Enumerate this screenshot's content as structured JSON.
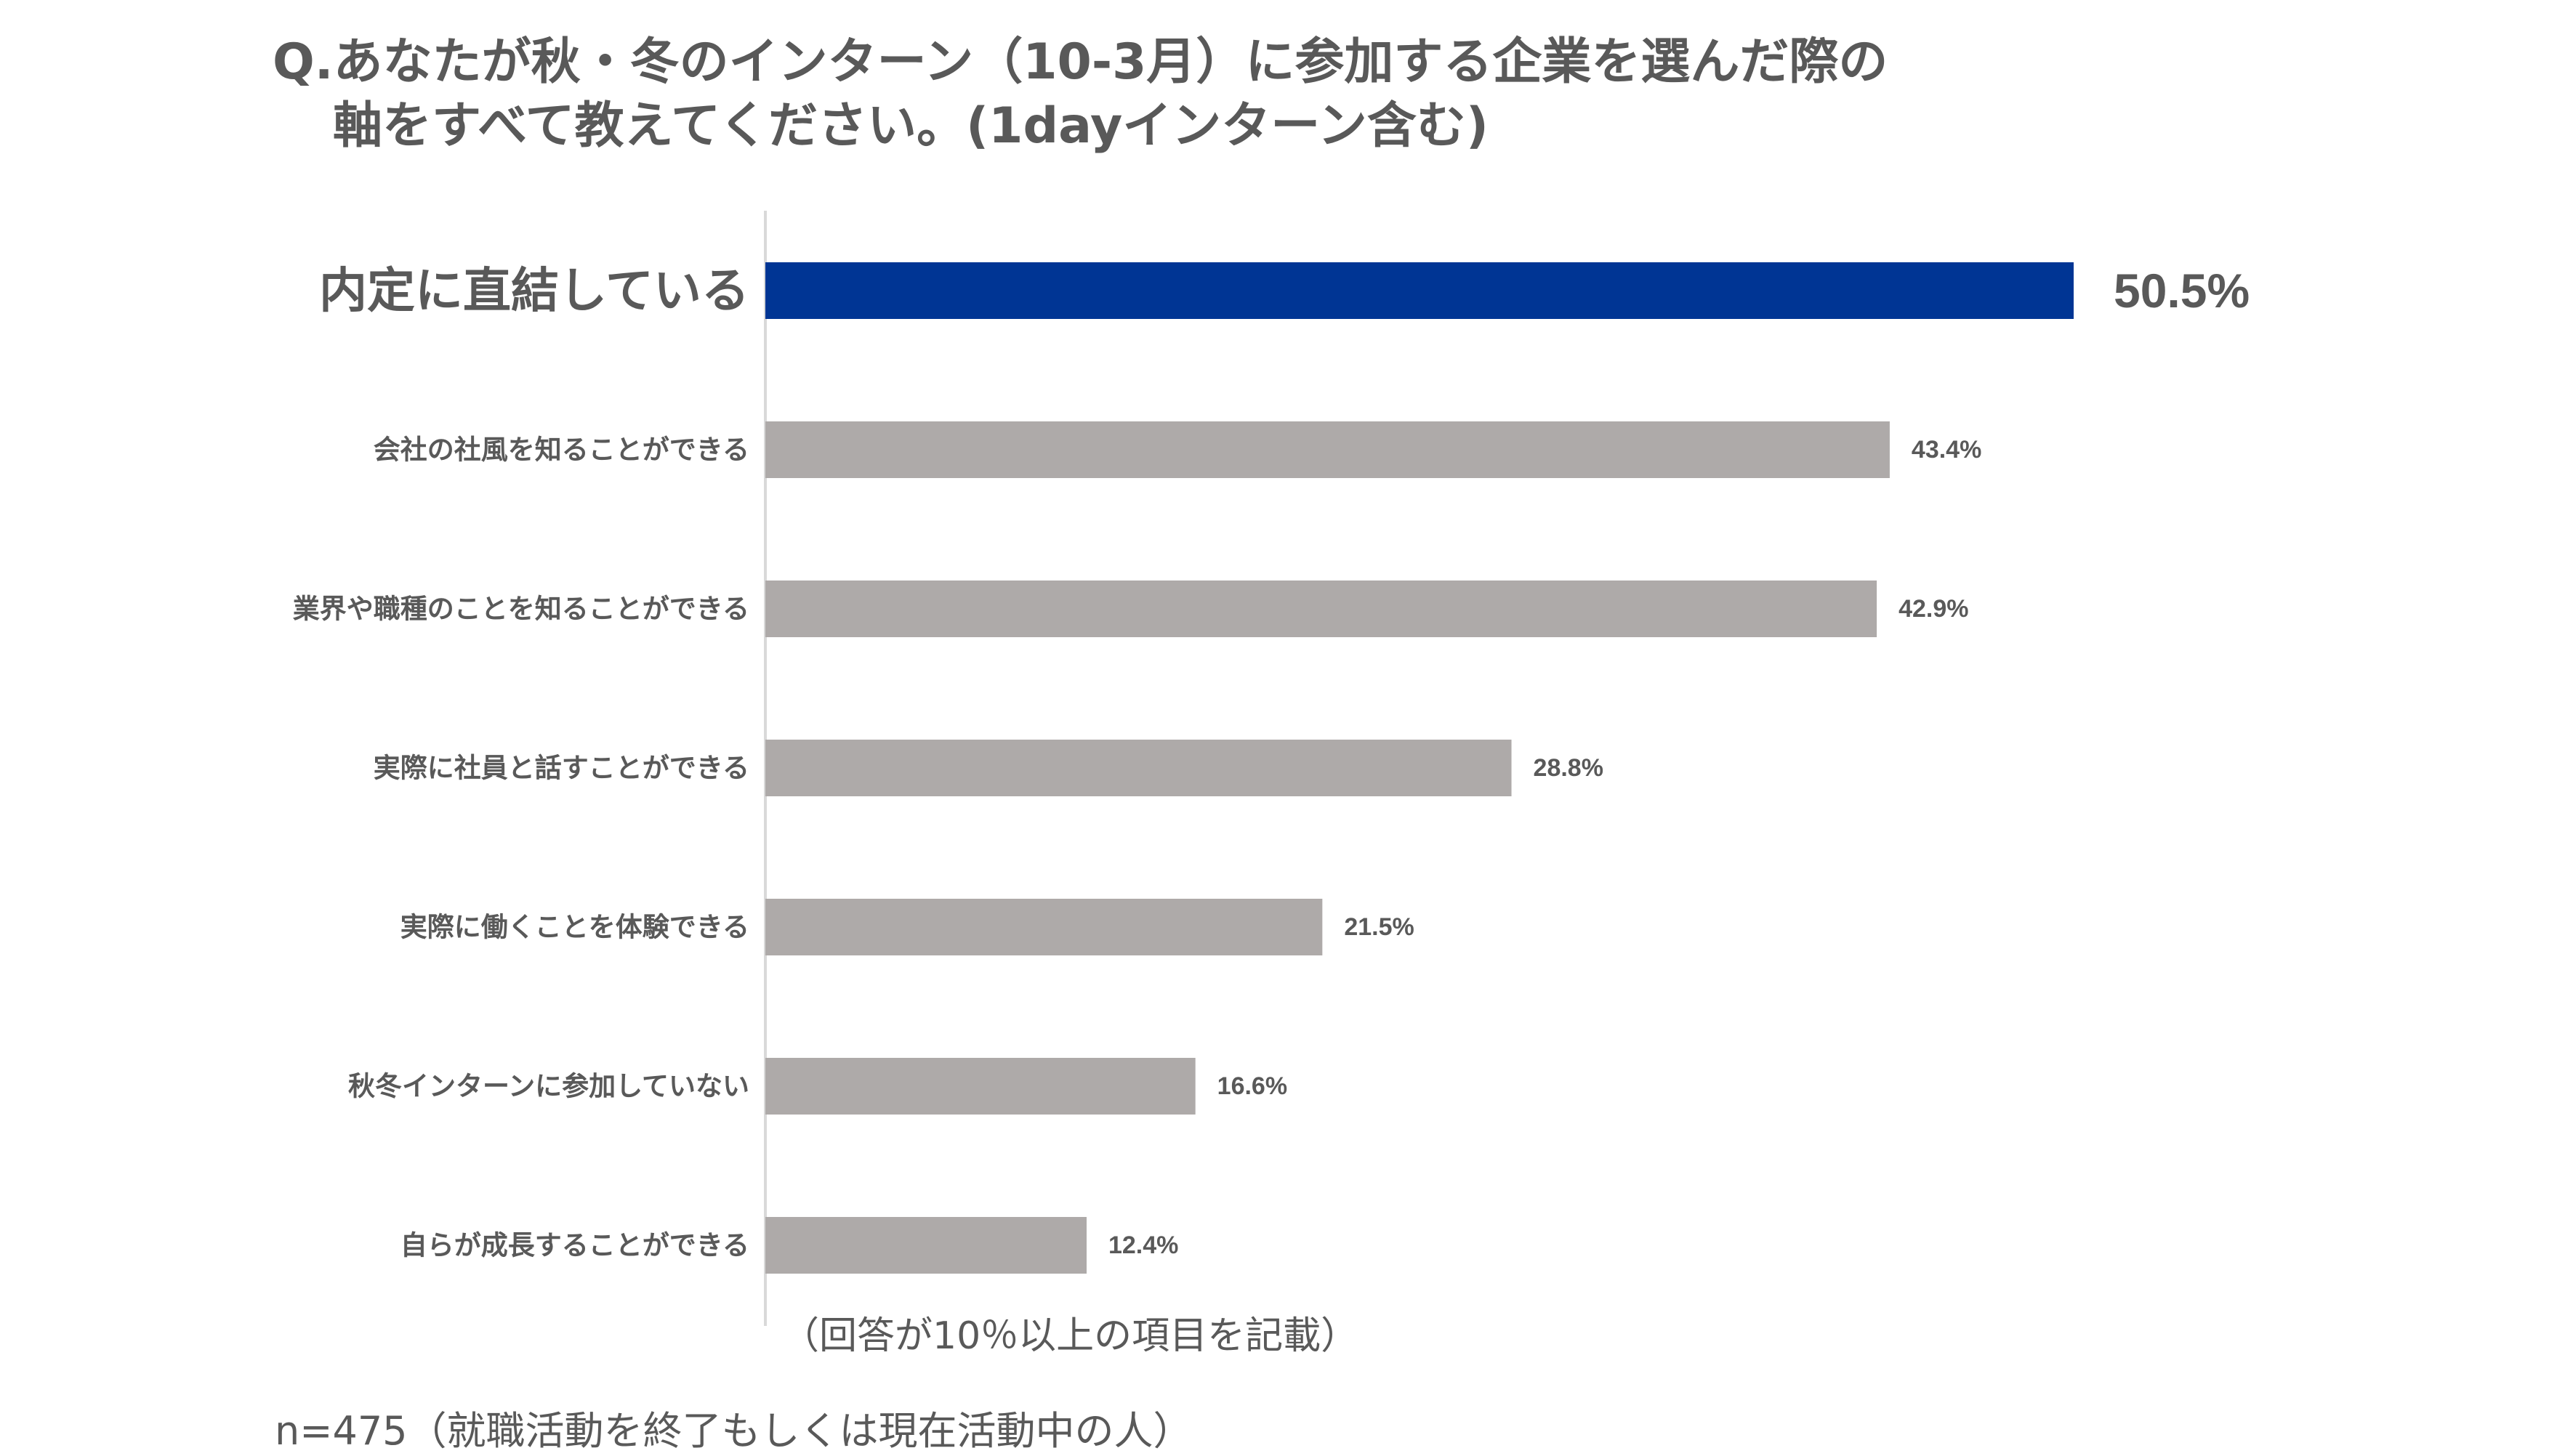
{
  "title": {
    "line1": "Q.あなたが秋・冬のインターン（10-3月）に参加する企業を選んだ際の",
    "line2": "軸をすべて教えてください。(1dayインターン含む)"
  },
  "note": "（回答が10％以上の項目を記載）",
  "sample": "n=475（就職活動を終了もしくは現在活動中の人）",
  "colors": {
    "highlight": "#003594",
    "bar": "#aeaaa9",
    "text": "#595959",
    "axis": "#d9d9d9"
  },
  "chart_data": {
    "type": "bar",
    "orientation": "horizontal",
    "categories": [
      "内定に直結している",
      "会社の社風を知ることができる",
      "業界や職種のことを知ることができる",
      "実際に社員と話すことができる",
      "実際に働くことを体験できる",
      "秋冬インターンに参加していない",
      "自らが成長することができる"
    ],
    "values": [
      50.5,
      43.4,
      42.9,
      28.8,
      21.5,
      16.6,
      12.4
    ],
    "value_labels": [
      "50.5%",
      "43.4%",
      "42.9%",
      "28.8%",
      "21.5%",
      "16.6%",
      "12.4%"
    ],
    "highlight_index": 0,
    "unit": "%",
    "xlim": [
      0,
      50.5
    ],
    "grid": false
  }
}
